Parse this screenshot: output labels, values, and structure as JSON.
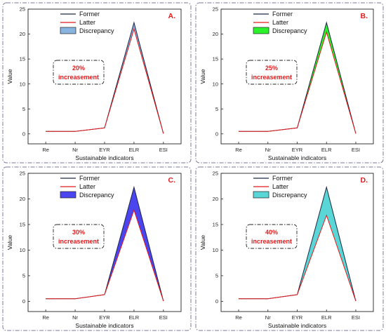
{
  "chart_data": [
    {
      "type": "line",
      "panel": "A.",
      "note": [
        "20%",
        "increasement"
      ],
      "categories": [
        "Re",
        "Nr",
        "EYR",
        "ELR",
        "ESI"
      ],
      "series": [
        {
          "name": "Former",
          "values": [
            0.5,
            0.5,
            1.2,
            22.3,
            0.05
          ]
        },
        {
          "name": "Latter",
          "values": [
            0.5,
            0.5,
            1.2,
            21.0,
            0.05
          ]
        }
      ],
      "discrepancy_label": "Discrepancy",
      "discrepancy_color": "#8ab4e0",
      "xlabel": "Sustainable indicators",
      "ylabel": "Value",
      "ylim": [
        -2,
        25
      ],
      "yticks": [
        0,
        5,
        10,
        15,
        20,
        25
      ]
    },
    {
      "type": "line",
      "panel": "B.",
      "note": [
        "25%",
        "increasement"
      ],
      "categories": [
        "Re",
        "Nr",
        "EYR",
        "ELR",
        "ESI"
      ],
      "series": [
        {
          "name": "Former",
          "values": [
            0.5,
            0.5,
            1.2,
            22.3,
            0.05
          ]
        },
        {
          "name": "Latter",
          "values": [
            0.5,
            0.5,
            1.2,
            20.4,
            0.05
          ]
        }
      ],
      "discrepancy_label": "Discrepancy",
      "discrepancy_color": "#2cf22c",
      "xlabel": "Sustainable indicators",
      "ylabel": "Value",
      "ylim": [
        -2,
        25
      ],
      "yticks": [
        0,
        5,
        10,
        15,
        20,
        25
      ]
    },
    {
      "type": "line",
      "panel": "C.",
      "note": [
        "30%",
        "increasement"
      ],
      "categories": [
        "Re",
        "Nr",
        "EYR",
        "ELR",
        "ESI"
      ],
      "series": [
        {
          "name": "Former",
          "values": [
            0.5,
            0.5,
            1.3,
            22.3,
            0.05
          ]
        },
        {
          "name": "Latter",
          "values": [
            0.5,
            0.5,
            1.3,
            17.8,
            0.05
          ]
        }
      ],
      "discrepancy_label": "Discrepancy",
      "discrepancy_color": "#4b45f0",
      "xlabel": "Sustainable indicators",
      "ylabel": "Value",
      "ylim": [
        -2,
        25
      ],
      "yticks": [
        0,
        5,
        10,
        15,
        20,
        25
      ]
    },
    {
      "type": "line",
      "panel": "D.",
      "note": [
        "40%",
        "increasement"
      ],
      "categories": [
        "Re",
        "Nr",
        "EYR",
        "ELR",
        "ESI"
      ],
      "series": [
        {
          "name": "Former",
          "values": [
            0.5,
            0.5,
            1.3,
            22.3,
            0.05
          ]
        },
        {
          "name": "Latter",
          "values": [
            0.5,
            0.5,
            1.3,
            16.8,
            0.05
          ]
        }
      ],
      "discrepancy_label": "Discrepancy",
      "discrepancy_color": "#5ad6d6",
      "xlabel": "Sustainable indicators",
      "ylabel": "Value",
      "ylim": [
        -2,
        25
      ],
      "yticks": [
        0,
        5,
        10,
        15,
        20,
        25
      ]
    }
  ],
  "colors": {
    "former_line": "#1f2a44",
    "latter_line": "#e31a1c",
    "panel_border": "#7a7a9a",
    "note_border": "#222222",
    "accent_text": "#e31a1c"
  }
}
